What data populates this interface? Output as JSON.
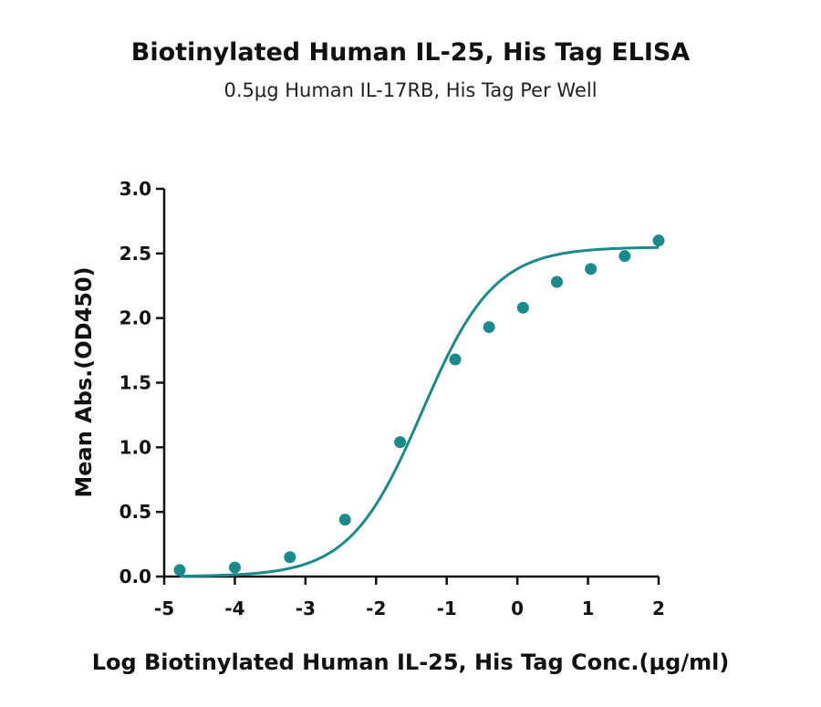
{
  "chart_data": {
    "type": "scatter",
    "title": "Biotinylated Human IL-25, His Tag ELISA",
    "subtitle": "0.5μg Human IL-17RB, His Tag Per Well",
    "xlabel": "Log Biotinylated Human IL-25, His Tag Conc.(μg/ml)",
    "ylabel": "Mean Abs.(OD450)",
    "xlim": [
      -5,
      2
    ],
    "ylim": [
      0,
      3
    ],
    "x_ticks": [
      -5,
      -4,
      -3,
      -2,
      -1,
      0,
      1,
      2
    ],
    "y_ticks": [
      0,
      0.5,
      1,
      1.5,
      2,
      2.5,
      3
    ],
    "x_tick_labels": [
      "-5",
      "-4",
      "-3",
      "-2",
      "-1",
      "0",
      "1",
      "2"
    ],
    "y_tick_labels": [
      "0.0",
      "0.5",
      "1.0",
      "1.5",
      "2.0",
      "2.5",
      "3.0"
    ],
    "grid": false,
    "color": "#1a8a8a",
    "series": [
      {
        "x": [
          -4.78,
          -4.0,
          -3.22,
          -2.44,
          -1.66,
          -0.88,
          -0.4,
          0.08,
          0.56,
          1.04,
          1.52,
          2.0
        ],
        "y": [
          0.05,
          0.07,
          0.15,
          0.44,
          1.04,
          1.68,
          1.93,
          2.08,
          2.28,
          2.38,
          2.48,
          2.6
        ]
      }
    ],
    "fit_curve": {
      "type": "4PL",
      "bottom": 0.0,
      "top": 2.55,
      "log_ec50": -1.35,
      "hill_slope": 0.85,
      "x_range": [
        -4.78,
        2.0
      ]
    }
  }
}
